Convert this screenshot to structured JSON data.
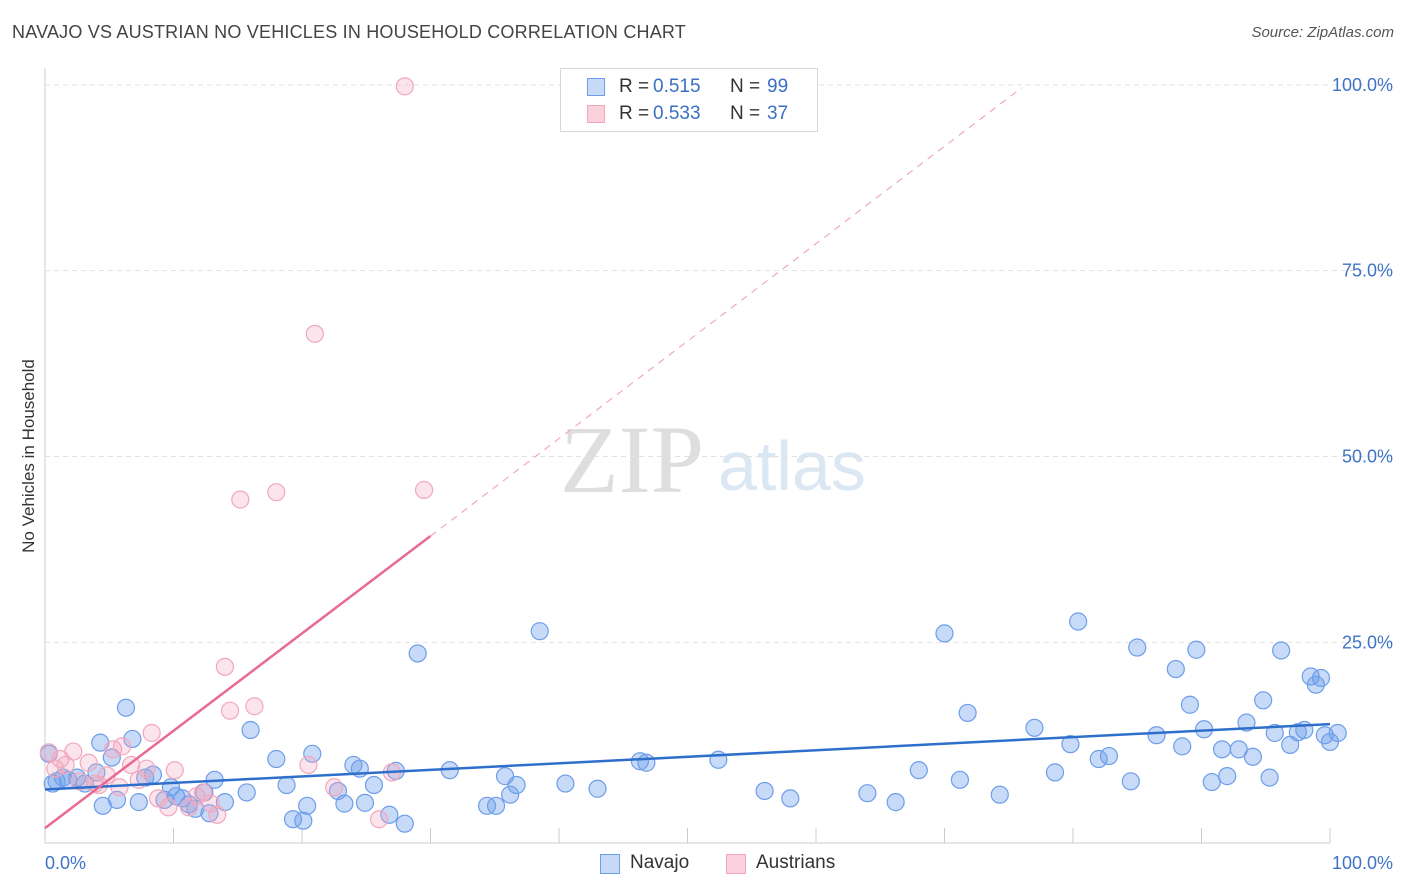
{
  "header": {
    "title": "NAVAJO VS AUSTRIAN NO VEHICLES IN HOUSEHOLD CORRELATION CHART",
    "source": "Source: ZipAtlas.com"
  },
  "watermark": {
    "zip": "ZIP",
    "atlas": "atlas"
  },
  "legend": {
    "r_label": "R =",
    "n_label": "N =",
    "rows": [
      {
        "name": "Navajo",
        "r": "0.515",
        "n": "99"
      },
      {
        "name": "Austrians",
        "r": "0.533",
        "n": "37"
      }
    ]
  },
  "chart_data": {
    "type": "scatter",
    "title": "NAVAJO VS AUSTRIAN NO VEHICLES IN HOUSEHOLD CORRELATION CHART",
    "xlabel": "",
    "ylabel": "No Vehicles in Household",
    "xlim": [
      0,
      100
    ],
    "ylim": [
      -2,
      102
    ],
    "x_tick_labels": [
      "0.0%",
      "100.0%"
    ],
    "y_ticks": [
      25,
      50,
      75,
      100
    ],
    "y_tick_labels": [
      "25.0%",
      "50.0%",
      "75.0%",
      "100.0%"
    ],
    "colors": {
      "navajo": "#6d9eea",
      "navajo_line": "#2f6fcc",
      "austrians": "#f2a7bd",
      "austrians_line": "#e86a93",
      "tick_label": "#3f73c6",
      "grid": "#e2e2e2"
    },
    "series": [
      {
        "name": "Navajo",
        "trend": {
          "x0": 0,
          "y0": 5.2,
          "x1": 100,
          "y1": 14.0
        },
        "points": [
          [
            0.3,
            10.0
          ],
          [
            0.6,
            6.0
          ],
          [
            0.9,
            6.3
          ],
          [
            1.4,
            6.8
          ],
          [
            1.8,
            6.5
          ],
          [
            2.5,
            6.8
          ],
          [
            3.1,
            6.0
          ],
          [
            4.0,
            7.5
          ],
          [
            4.3,
            11.5
          ],
          [
            4.5,
            3.0
          ],
          [
            5.2,
            9.5
          ],
          [
            5.6,
            3.8
          ],
          [
            6.3,
            16.2
          ],
          [
            6.8,
            12.0
          ],
          [
            7.3,
            3.5
          ],
          [
            7.8,
            6.8
          ],
          [
            8.4,
            7.2
          ],
          [
            9.3,
            3.8
          ],
          [
            9.8,
            5.5
          ],
          [
            10.2,
            4.3
          ],
          [
            10.7,
            4.0
          ],
          [
            11.2,
            3.2
          ],
          [
            11.7,
            2.6
          ],
          [
            12.4,
            4.8
          ],
          [
            12.8,
            2.0
          ],
          [
            13.2,
            6.5
          ],
          [
            14.0,
            3.5
          ],
          [
            15.7,
            4.8
          ],
          [
            16.0,
            13.2
          ],
          [
            18.0,
            9.3
          ],
          [
            18.8,
            5.8
          ],
          [
            19.3,
            1.2
          ],
          [
            20.1,
            1.0
          ],
          [
            20.4,
            3.0
          ],
          [
            20.8,
            10.0
          ],
          [
            22.8,
            5.0
          ],
          [
            23.3,
            3.3
          ],
          [
            24.0,
            8.5
          ],
          [
            24.5,
            8.0
          ],
          [
            24.9,
            3.4
          ],
          [
            25.6,
            5.8
          ],
          [
            26.8,
            1.8
          ],
          [
            27.3,
            7.7
          ],
          [
            28.0,
            0.6
          ],
          [
            29.0,
            23.5
          ],
          [
            31.5,
            7.8
          ],
          [
            34.4,
            3.0
          ],
          [
            35.1,
            3.0
          ],
          [
            35.8,
            7.0
          ],
          [
            36.2,
            4.5
          ],
          [
            36.7,
            5.8
          ],
          [
            38.5,
            26.5
          ],
          [
            40.5,
            6.0
          ],
          [
            43.0,
            5.3
          ],
          [
            46.3,
            9.0
          ],
          [
            46.8,
            8.8
          ],
          [
            52.4,
            9.2
          ],
          [
            56.0,
            5.0
          ],
          [
            58.0,
            4.0
          ],
          [
            64.0,
            4.7
          ],
          [
            66.2,
            3.5
          ],
          [
            68.0,
            7.8
          ],
          [
            70.0,
            26.2
          ],
          [
            71.2,
            6.5
          ],
          [
            71.8,
            15.5
          ],
          [
            74.3,
            4.5
          ],
          [
            77.0,
            13.5
          ],
          [
            78.6,
            7.5
          ],
          [
            79.8,
            11.3
          ],
          [
            80.4,
            27.8
          ],
          [
            82.0,
            9.3
          ],
          [
            82.8,
            9.7
          ],
          [
            84.5,
            6.3
          ],
          [
            85.0,
            24.3
          ],
          [
            86.5,
            12.5
          ],
          [
            88.0,
            21.4
          ],
          [
            88.5,
            11.0
          ],
          [
            89.1,
            16.6
          ],
          [
            89.6,
            24.0
          ],
          [
            90.2,
            13.3
          ],
          [
            90.8,
            6.2
          ],
          [
            91.6,
            10.6
          ],
          [
            92.0,
            7.0
          ],
          [
            92.9,
            10.6
          ],
          [
            93.5,
            14.2
          ],
          [
            94.0,
            9.6
          ],
          [
            94.8,
            17.2
          ],
          [
            95.3,
            6.8
          ],
          [
            95.7,
            12.8
          ],
          [
            96.2,
            23.9
          ],
          [
            96.9,
            11.2
          ],
          [
            97.5,
            12.9
          ],
          [
            98.0,
            13.2
          ],
          [
            98.5,
            20.4
          ],
          [
            98.9,
            19.3
          ],
          [
            99.3,
            20.2
          ],
          [
            99.6,
            12.5
          ],
          [
            100.0,
            11.6
          ],
          [
            100.6,
            12.8
          ]
        ]
      },
      {
        "name": "Austrians",
        "trend": {
          "x0": 0,
          "y0": 0,
          "x1": 30,
          "y1": 39.3
        },
        "trend_dashed_to": {
          "x": 76,
          "y": 99.6
        },
        "points": [
          [
            0.3,
            10.2
          ],
          [
            0.8,
            8.0
          ],
          [
            1.2,
            9.3
          ],
          [
            1.6,
            8.5
          ],
          [
            2.2,
            10.3
          ],
          [
            2.7,
            6.3
          ],
          [
            3.4,
            8.8
          ],
          [
            3.9,
            6.0
          ],
          [
            4.2,
            5.8
          ],
          [
            4.8,
            7.1
          ],
          [
            5.3,
            10.6
          ],
          [
            5.8,
            5.5
          ],
          [
            6.0,
            11.0
          ],
          [
            6.7,
            8.5
          ],
          [
            7.3,
            6.5
          ],
          [
            7.9,
            8.0
          ],
          [
            8.3,
            12.8
          ],
          [
            8.8,
            4.0
          ],
          [
            9.6,
            2.8
          ],
          [
            10.1,
            7.8
          ],
          [
            11.2,
            2.8
          ],
          [
            11.8,
            4.3
          ],
          [
            12.3,
            4.8
          ],
          [
            12.9,
            3.3
          ],
          [
            13.4,
            1.8
          ],
          [
            14.0,
            21.7
          ],
          [
            14.4,
            15.8
          ],
          [
            15.2,
            44.2
          ],
          [
            16.3,
            16.4
          ],
          [
            18.0,
            45.2
          ],
          [
            20.5,
            8.5
          ],
          [
            21.0,
            66.5
          ],
          [
            22.5,
            5.5
          ],
          [
            26.0,
            1.2
          ],
          [
            27.0,
            7.5
          ],
          [
            28.0,
            99.8
          ],
          [
            29.5,
            45.5
          ]
        ]
      }
    ]
  }
}
